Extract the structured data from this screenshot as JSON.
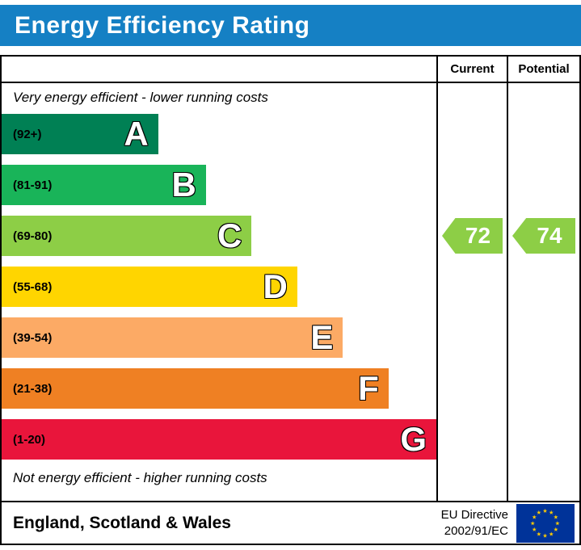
{
  "title": "Energy Efficiency Rating",
  "colors": {
    "title_bar_bg": "#1580c4",
    "title_text": "#ffffff",
    "border": "#000000"
  },
  "columns": {
    "current": "Current",
    "potential": "Potential"
  },
  "notes": {
    "top": "Very energy efficient - lower running costs",
    "bottom": "Not energy efficient - higher running costs"
  },
  "footer": {
    "region": "England, Scotland & Wales",
    "directive_line1": "EU Directive",
    "directive_line2": "2002/91/EC",
    "eu_flag": {
      "background": "#003399",
      "stars": "#ffcc00"
    }
  },
  "chart_data": {
    "type": "bar",
    "title": "Energy Efficiency Rating",
    "bands": [
      {
        "letter": "A",
        "label": "(92+)",
        "min": 92,
        "max": 100,
        "color": "#008054",
        "width_pct": 36
      },
      {
        "letter": "B",
        "label": "(81-91)",
        "min": 81,
        "max": 91,
        "color": "#19b459",
        "width_pct": 47
      },
      {
        "letter": "C",
        "label": "(69-80)",
        "min": 69,
        "max": 80,
        "color": "#8dce46",
        "width_pct": 57.5
      },
      {
        "letter": "D",
        "label": "(55-68)",
        "min": 55,
        "max": 68,
        "color": "#ffd500",
        "width_pct": 68
      },
      {
        "letter": "E",
        "label": "(39-54)",
        "min": 39,
        "max": 54,
        "color": "#fcaa65",
        "width_pct": 78.5
      },
      {
        "letter": "F",
        "label": "(21-38)",
        "min": 21,
        "max": 38,
        "color": "#ef8023",
        "width_pct": 89
      },
      {
        "letter": "G",
        "label": "(1-20)",
        "min": 1,
        "max": 20,
        "color": "#e9153b",
        "width_pct": 100
      }
    ],
    "current": {
      "label": "Current",
      "value": 72,
      "band": "C",
      "color": "#8dce46"
    },
    "potential": {
      "label": "Potential",
      "value": 74,
      "band": "C",
      "color": "#8dce46"
    }
  }
}
